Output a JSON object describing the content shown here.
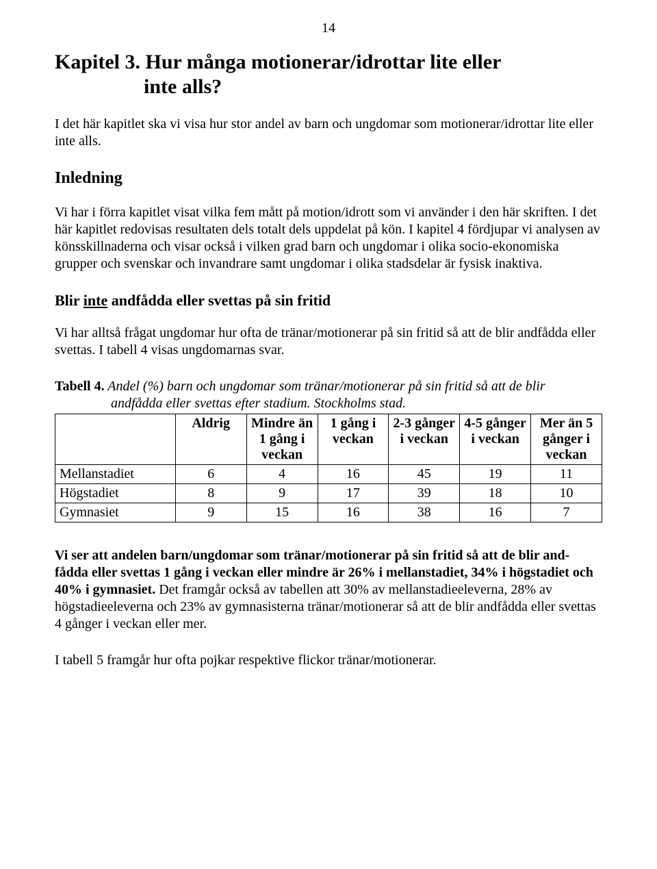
{
  "pageNumber": "14",
  "chapterTitle": {
    "line1": "Kapitel 3.  Hur många motionerar/idrottar lite eller",
    "line2": "inte alls?"
  },
  "intro": "I det här kapitlet ska vi visa hur stor andel av barn och ungdomar som motionerar/idrottar lite eller inte alls.",
  "sectionInledning": "Inledning",
  "inledningBody": "Vi har i förra kapitlet visat vilka fem mått på motion/idrott som vi använder i den här skriften. I det här kapitlet redovisas resultaten dels totalt dels uppdelat på kön. I kapitel 4 fördjupar vi analysen av könsskillnaderna och visar också i vilken grad barn och ungdomar i olika socio-ekonomiska grupper och svenskar och invandrare samt ungdomar i olika stadsdelar är fysisk inaktiva.",
  "subHeading": {
    "pre": "Blir ",
    "under": "inte",
    "post": " andfådda eller svettas på sin fritid"
  },
  "subBody": "Vi har alltså frågat ungdomar hur ofta de tränar/motionerar på sin fritid så att de blir andfådda eller svettas. I tabell 4 visas ungdomarnas svar.",
  "tableCaption": {
    "label": "Tabell 4.",
    "titleLine1": " Andel (%) barn och ungdomar som tränar/motionerar på sin fritid så att de blir",
    "titleLine2": "andfådda eller svettas efter stadium. Stockholms stad."
  },
  "table": {
    "columns": [
      "Aldrig",
      "Mindre än 1 gång i veckan",
      "1 gång i veckan",
      "2-3 gånger i veckan",
      "4-5 gånger i veckan",
      "Mer än 5 gånger i veckan"
    ],
    "rows": [
      {
        "label": "Mellanstadiet",
        "values": [
          "6",
          "4",
          "16",
          "45",
          "19",
          "11"
        ]
      },
      {
        "label": "Högstadiet",
        "values": [
          "8",
          "9",
          "17",
          "39",
          "18",
          "10"
        ]
      },
      {
        "label": "Gymnasiet",
        "values": [
          "9",
          "15",
          "16",
          "38",
          "16",
          "7"
        ]
      }
    ]
  },
  "conclusion": {
    "boldPart": "Vi ser att andelen barn/ungdomar som tränar/motionerar på sin fritid så att de blir and-fådda eller svettas 1 gång i veckan eller mindre är 26% i mellanstadiet, 34% i högstadiet och 40% i gymnasiet.",
    "rest": " Det framgår också av tabellen att 30% av mellanstadieeleverna, 28% av högstadieeleverna och 23% av gymnasisterna tränar/motionerar så att de blir andfådda eller svettas 4 gånger i veckan eller mer."
  },
  "final": "I tabell 5 framgår hur ofta pojkar respektive flickor tränar/motionerar."
}
